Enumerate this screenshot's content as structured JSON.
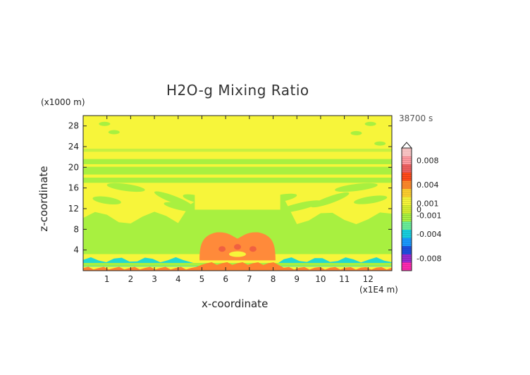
{
  "chart_data": {
    "type": "heatmap",
    "title": "H2O-g Mixing Ratio",
    "xlabel": "x-coordinate",
    "ylabel": "z-coordinate",
    "x_unit": "(x1E4 m)",
    "z_unit": "(x1000 m)",
    "time_label": "38700 s",
    "xlim": [
      0,
      13
    ],
    "ylim": [
      0,
      30
    ],
    "x_ticks": [
      "1",
      "2",
      "3",
      "4",
      "5",
      "6",
      "7",
      "8",
      "9",
      "10",
      "11",
      "12"
    ],
    "y_ticks": [
      "4",
      "8",
      "12",
      "16",
      "20",
      "24",
      "28"
    ],
    "colorbar": {
      "tick_labels": [
        "0.008",
        "0.004",
        "0.001",
        "0",
        "-0.001",
        "-0.004",
        "-0.008"
      ],
      "tick_values": [
        0.008,
        0.004,
        0.001,
        0,
        -0.001,
        -0.004,
        -0.008
      ],
      "range": [
        -0.01,
        0.01
      ],
      "colors": [
        "#ff2ab0",
        "#9a2ad0",
        "#1e4fe0",
        "#1a9aff",
        "#18d0e0",
        "#6af09a",
        "#a8f040",
        "#d8f030",
        "#f7f53a",
        "#ffd030",
        "#ff8a2a",
        "#ff4a1a",
        "#f06060",
        "#ff9aa0",
        "#ffc8c8"
      ]
    },
    "regions": [
      {
        "name": "background",
        "value": 0.0005,
        "color": "#f7f53a"
      },
      {
        "name": "lower green band",
        "value": -0.0002,
        "color": "#a8f040"
      },
      {
        "name": "central orange plume",
        "value": 0.003,
        "color": "#ff8a3a"
      },
      {
        "name": "near-surface cyan layer",
        "value": -0.0012,
        "color": "#22d8d0"
      },
      {
        "name": "surface orange layer",
        "value": 0.002,
        "color": "#ff8030"
      }
    ]
  }
}
